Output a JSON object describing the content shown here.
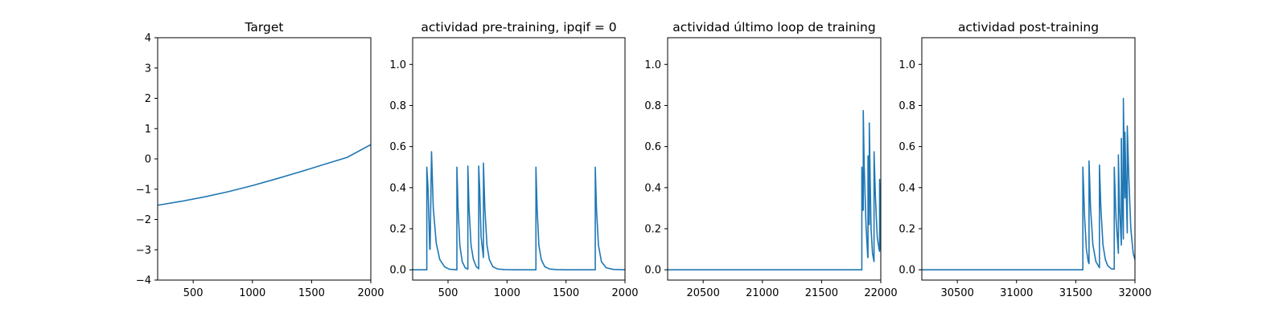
{
  "chart_data": [
    {
      "type": "line",
      "title": "Target",
      "xlim": [
        200,
        2000
      ],
      "ylim": [
        -4,
        4
      ],
      "xticks": [
        500,
        1000,
        1500,
        2000
      ],
      "yticks": [
        -4,
        -3,
        -2,
        -1,
        0,
        1,
        2,
        3,
        4
      ],
      "xtick_labels": [
        "500",
        "1000",
        "1500",
        "2000"
      ],
      "ytick_labels": [
        "−4",
        "−3",
        "−2",
        "−1",
        "0",
        "1",
        "2",
        "3",
        "4"
      ],
      "grid": false,
      "color": "#1f77b4",
      "x": [
        200,
        400,
        600,
        800,
        1000,
        1200,
        1400,
        1600,
        1800,
        2000
      ],
      "y": [
        -1.53,
        -1.4,
        -1.25,
        -1.08,
        -0.88,
        -0.66,
        -0.43,
        -0.19,
        0.05,
        0.47
      ]
    },
    {
      "type": "line",
      "title": "actividad pre-training, ipqif = 0",
      "xlim": [
        200,
        2000
      ],
      "ylim": [
        -0.05,
        1.13
      ],
      "xticks": [
        500,
        1000,
        1500,
        2000
      ],
      "yticks": [
        0.0,
        0.2,
        0.4,
        0.6,
        0.8,
        1.0
      ],
      "xtick_labels": [
        "500",
        "1000",
        "1500",
        "2000"
      ],
      "ytick_labels": [
        "0.0",
        "0.2",
        "0.4",
        "0.6",
        "0.8",
        "1.0"
      ],
      "grid": false,
      "color": "#1f77b4",
      "x": [
        200,
        320,
        320,
        330,
        345,
        348,
        360,
        375,
        400,
        430,
        470,
        510,
        575,
        575,
        585,
        600,
        620,
        645,
        668,
        668,
        678,
        695,
        715,
        740,
        760,
        760,
        768,
        780,
        800,
        800,
        812,
        830,
        850,
        880,
        920,
        980,
        1060,
        1150,
        1245,
        1245,
        1255,
        1270,
        1290,
        1320,
        1360,
        1420,
        1500,
        1600,
        1748,
        1748,
        1758,
        1775,
        1800,
        1840,
        1900,
        2000
      ],
      "y": [
        0,
        0,
        0.5,
        0.4,
        0.1,
        0.1,
        0.575,
        0.3,
        0.13,
        0.05,
        0.015,
        0.003,
        0,
        0.5,
        0.3,
        0.12,
        0.04,
        0.01,
        0.003,
        0.505,
        0.3,
        0.12,
        0.05,
        0.015,
        0.005,
        0.505,
        0.4,
        0.16,
        0.06,
        0.52,
        0.3,
        0.12,
        0.05,
        0.015,
        0.004,
        0.001,
        0,
        0,
        0,
        0.5,
        0.3,
        0.12,
        0.05,
        0.015,
        0.004,
        0.001,
        0,
        0,
        0,
        0.5,
        0.3,
        0.12,
        0.04,
        0.01,
        0.002,
        0
      ]
    },
    {
      "type": "line",
      "title": "actividad último loop de training",
      "xlim": [
        20200,
        22000
      ],
      "ylim": [
        -0.05,
        1.13
      ],
      "xticks": [
        20500,
        21000,
        21500,
        22000
      ],
      "yticks": [
        0.0,
        0.2,
        0.4,
        0.6,
        0.8,
        1.0
      ],
      "xtick_labels": [
        "20500",
        "21000",
        "21500",
        "22000"
      ],
      "ytick_labels": [
        "0.0",
        "0.2",
        "0.4",
        "0.6",
        "0.8",
        "1.0"
      ],
      "grid": false,
      "color": "#1f77b4",
      "x": [
        20200,
        21840,
        21840,
        21848,
        21852,
        21852,
        21860,
        21875,
        21890,
        21892,
        21892,
        21898,
        21903,
        21903,
        21910,
        21918,
        21930,
        21943,
        21943,
        21955,
        21970,
        21985,
        21990,
        21990,
        22000
      ],
      "y": [
        0,
        0,
        0.5,
        0.29,
        0.29,
        0.775,
        0.5,
        0.22,
        0.06,
        0.06,
        0.555,
        0.3,
        0.22,
        0.715,
        0.45,
        0.2,
        0.08,
        0.04,
        0.575,
        0.35,
        0.16,
        0.1,
        0.09,
        0.44,
        0.1
      ]
    },
    {
      "type": "line",
      "title": "actividad post-training",
      "xlim": [
        30200,
        32000
      ],
      "ylim": [
        -0.05,
        1.13
      ],
      "xticks": [
        30500,
        31000,
        31500,
        32000
      ],
      "yticks": [
        0.0,
        0.2,
        0.4,
        0.6,
        0.8,
        1.0
      ],
      "xtick_labels": [
        "30500",
        "31000",
        "31500",
        "32000"
      ],
      "ytick_labels": [
        "0.0",
        "0.2",
        "0.4",
        "0.6",
        "0.8",
        "1.0"
      ],
      "grid": false,
      "color": "#1f77b4",
      "x": [
        30200,
        31560,
        31560,
        31575,
        31590,
        31605,
        31612,
        31612,
        31625,
        31645,
        31670,
        31700,
        31700,
        31712,
        31730,
        31750,
        31770,
        31800,
        31825,
        31825,
        31840,
        31860,
        31860,
        31870,
        31885,
        31885,
        31893,
        31902,
        31902,
        31910,
        31915,
        31915,
        31925,
        31935,
        31935,
        31948,
        31965,
        31985,
        32000
      ],
      "y": [
        0,
        0,
        0.5,
        0.25,
        0.1,
        0.04,
        0.03,
        0.53,
        0.3,
        0.12,
        0.04,
        0.01,
        0.51,
        0.3,
        0.12,
        0.05,
        0.02,
        0.005,
        0.003,
        0.5,
        0.25,
        0.08,
        0.56,
        0.3,
        0.12,
        0.64,
        0.35,
        0.15,
        0.835,
        0.5,
        0.35,
        0.67,
        0.4,
        0.18,
        0.7,
        0.45,
        0.2,
        0.08,
        0.05
      ]
    }
  ]
}
